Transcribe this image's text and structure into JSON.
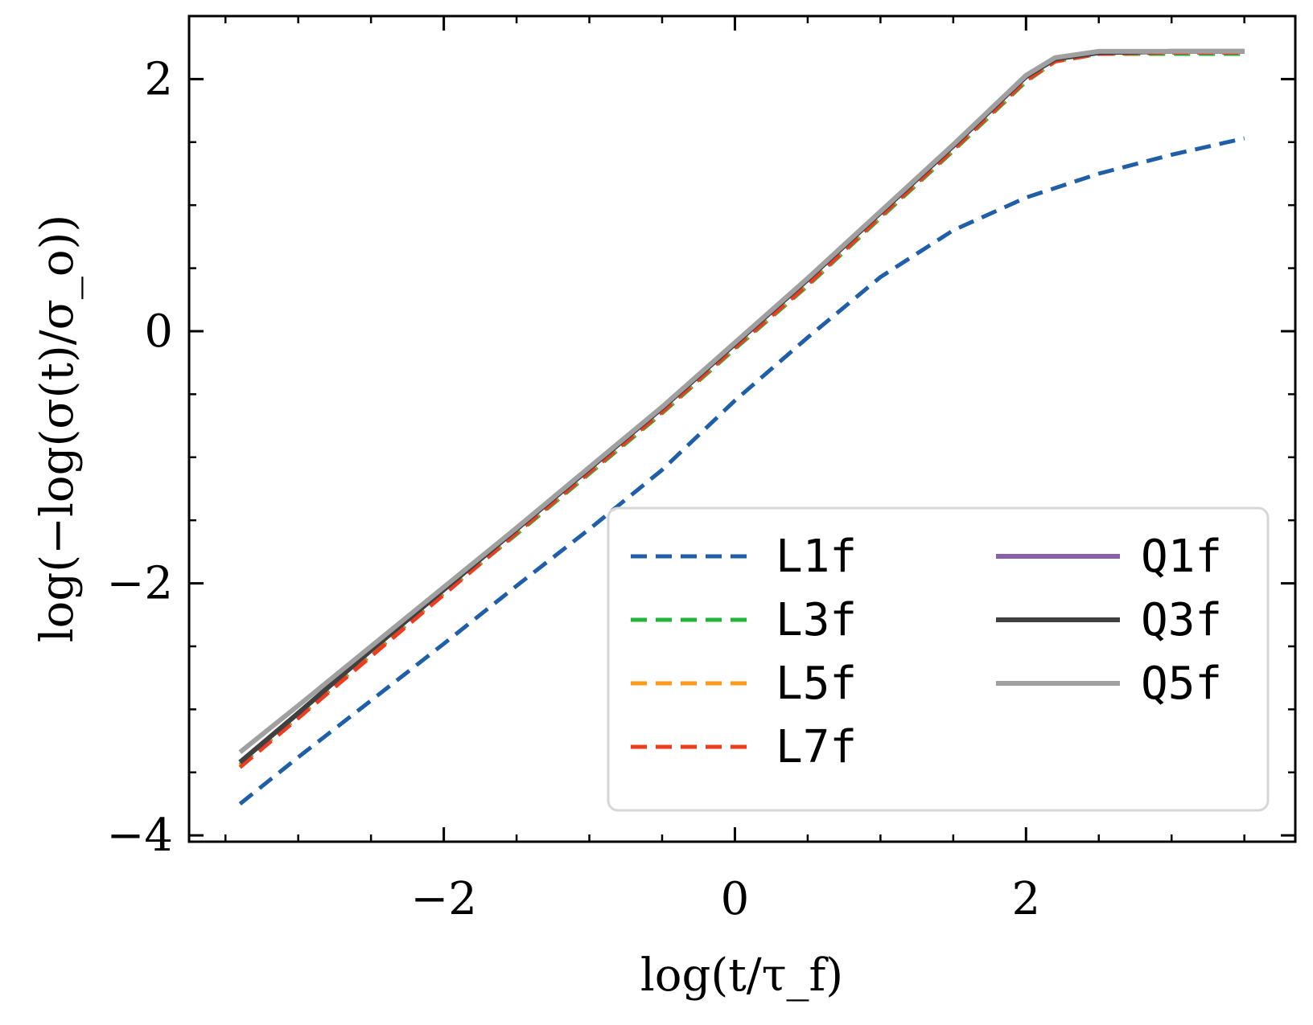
{
  "chart_data": {
    "type": "line",
    "title": "",
    "xlabel": "log(t/τ_f)",
    "ylabel": "log(−log(σ(t)/σ_o))",
    "xlim": [
      -3.75,
      3.85
    ],
    "ylim": [
      -4.05,
      2.5
    ],
    "xticks": [
      -2,
      0,
      2
    ],
    "xtick_labels": [
      "−2",
      "0",
      "2"
    ],
    "yticks": [
      -4,
      -2,
      0,
      2
    ],
    "ytick_labels": [
      "−4",
      "−2",
      "0",
      "2"
    ],
    "x_minor_step": 0.5,
    "y_minor_step": 0.5,
    "legend": {
      "placement": "lower-right",
      "ncol": 2
    },
    "series": [
      {
        "name": "L1f",
        "color": "#1f5fa8",
        "dash": true,
        "x": [
          -3.4,
          -3.0,
          -2.5,
          -2.0,
          -1.5,
          -1.0,
          -0.5,
          0.0,
          0.5,
          1.0,
          1.5,
          2.0,
          2.5,
          3.0,
          3.5
        ],
        "y": [
          -3.75,
          -3.38,
          -2.93,
          -2.48,
          -2.02,
          -1.57,
          -1.1,
          -0.55,
          -0.05,
          0.43,
          0.8,
          1.06,
          1.25,
          1.4,
          1.53
        ]
      },
      {
        "name": "L3f",
        "color": "#22b33a",
        "dash": true,
        "x": [
          -3.4,
          -3.0,
          -2.5,
          -2.0,
          -1.5,
          -1.0,
          -0.5,
          0.0,
          0.5,
          1.0,
          1.5,
          2.0,
          2.2,
          2.5,
          3.0,
          3.5
        ],
        "y": [
          -3.44,
          -3.06,
          -2.57,
          -2.08,
          -1.61,
          -1.13,
          -0.65,
          -0.14,
          0.36,
          0.9,
          1.43,
          1.98,
          2.14,
          2.2,
          2.2,
          2.2
        ]
      },
      {
        "name": "L5f",
        "color": "#ff9a1a",
        "dash": true,
        "x": [
          -3.4,
          -3.0,
          -2.5,
          -2.0,
          -1.5,
          -1.0,
          -0.5,
          0.0,
          0.5,
          1.0,
          1.5,
          2.0,
          2.2,
          2.5,
          3.0,
          3.5
        ],
        "y": [
          -3.45,
          -3.06,
          -2.57,
          -2.08,
          -1.6,
          -1.12,
          -0.64,
          -0.13,
          0.37,
          0.91,
          1.44,
          1.99,
          2.14,
          2.2,
          2.21,
          2.21
        ]
      },
      {
        "name": "L7f",
        "color": "#f03c1e",
        "dash": true,
        "x": [
          -3.4,
          -3.0,
          -2.5,
          -2.0,
          -1.5,
          -1.0,
          -0.5,
          0.0,
          0.5,
          1.0,
          1.5,
          2.0,
          2.2,
          2.5,
          3.0,
          3.5
        ],
        "y": [
          -3.46,
          -3.07,
          -2.58,
          -2.09,
          -1.6,
          -1.12,
          -0.64,
          -0.13,
          0.37,
          0.91,
          1.44,
          1.99,
          2.14,
          2.2,
          2.21,
          2.21
        ]
      },
      {
        "name": "Q1f",
        "color": "#8a5ea8",
        "dash": false,
        "x": [
          -3.4,
          -3.0,
          -2.5,
          -2.0,
          -1.5,
          -1.0,
          -0.5,
          0.0,
          0.5,
          1.0,
          1.5,
          2.0,
          2.2,
          2.5,
          3.0,
          3.5
        ],
        "y": [
          -3.42,
          -3.03,
          -2.53,
          -2.05,
          -1.57,
          -1.09,
          -0.61,
          -0.1,
          0.41,
          0.94,
          1.47,
          2.02,
          2.16,
          2.21,
          2.22,
          2.22
        ]
      },
      {
        "name": "Q3f",
        "color": "#404040",
        "dash": false,
        "x": [
          -3.4,
          -3.0,
          -2.5,
          -2.0,
          -1.5,
          -1.0,
          -0.5,
          0.0,
          0.5,
          1.0,
          1.5,
          2.0,
          2.2,
          2.5,
          3.0,
          3.5
        ],
        "y": [
          -3.42,
          -3.03,
          -2.53,
          -2.05,
          -1.57,
          -1.09,
          -0.61,
          -0.1,
          0.41,
          0.94,
          1.47,
          2.02,
          2.16,
          2.21,
          2.22,
          2.22
        ]
      },
      {
        "name": "Q5f",
        "color": "#a0a0a0",
        "dash": false,
        "x": [
          -3.4,
          -3.0,
          -2.5,
          -2.0,
          -1.5,
          -1.0,
          -0.5,
          0.0,
          0.5,
          1.0,
          1.5,
          2.0,
          2.2,
          2.5,
          3.0,
          3.5
        ],
        "y": [
          -3.34,
          -2.97,
          -2.5,
          -2.03,
          -1.56,
          -1.08,
          -0.6,
          -0.09,
          0.42,
          0.95,
          1.48,
          2.03,
          2.17,
          2.22,
          2.22,
          2.22
        ]
      }
    ]
  }
}
